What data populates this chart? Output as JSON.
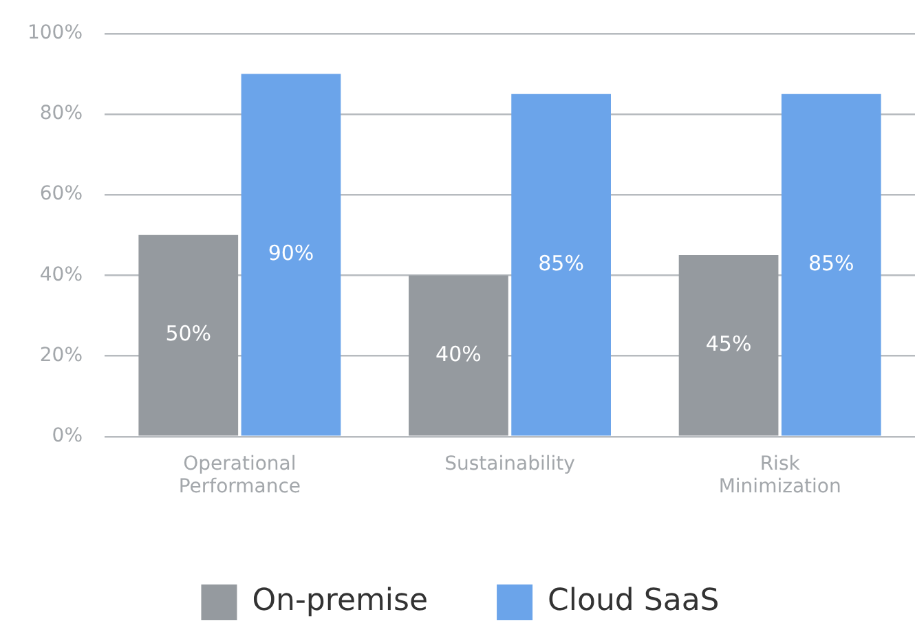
{
  "chart_data": {
    "type": "bar",
    "categories": [
      "Operational Performance",
      "Sustainability",
      "Risk Minimization"
    ],
    "series": [
      {
        "name": "On-premise",
        "color": "#959a9f",
        "values": [
          50,
          40,
          45
        ],
        "value_labels": [
          "50%",
          "40%",
          "45%"
        ]
      },
      {
        "name": "Cloud SaaS",
        "color": "#6ba4ea",
        "values": [
          90,
          85,
          85
        ],
        "value_labels": [
          "90%",
          "85%",
          "85%"
        ]
      }
    ],
    "ylim": [
      0,
      100
    ],
    "yticks": [
      {
        "value": 0,
        "label": "0%"
      },
      {
        "value": 20,
        "label": "20%"
      },
      {
        "value": 40,
        "label": "40%"
      },
      {
        "value": 60,
        "label": "60%"
      },
      {
        "value": 80,
        "label": "80%"
      },
      {
        "value": 100,
        "label": "100%"
      }
    ],
    "grid": "y",
    "legend": "bottom"
  }
}
